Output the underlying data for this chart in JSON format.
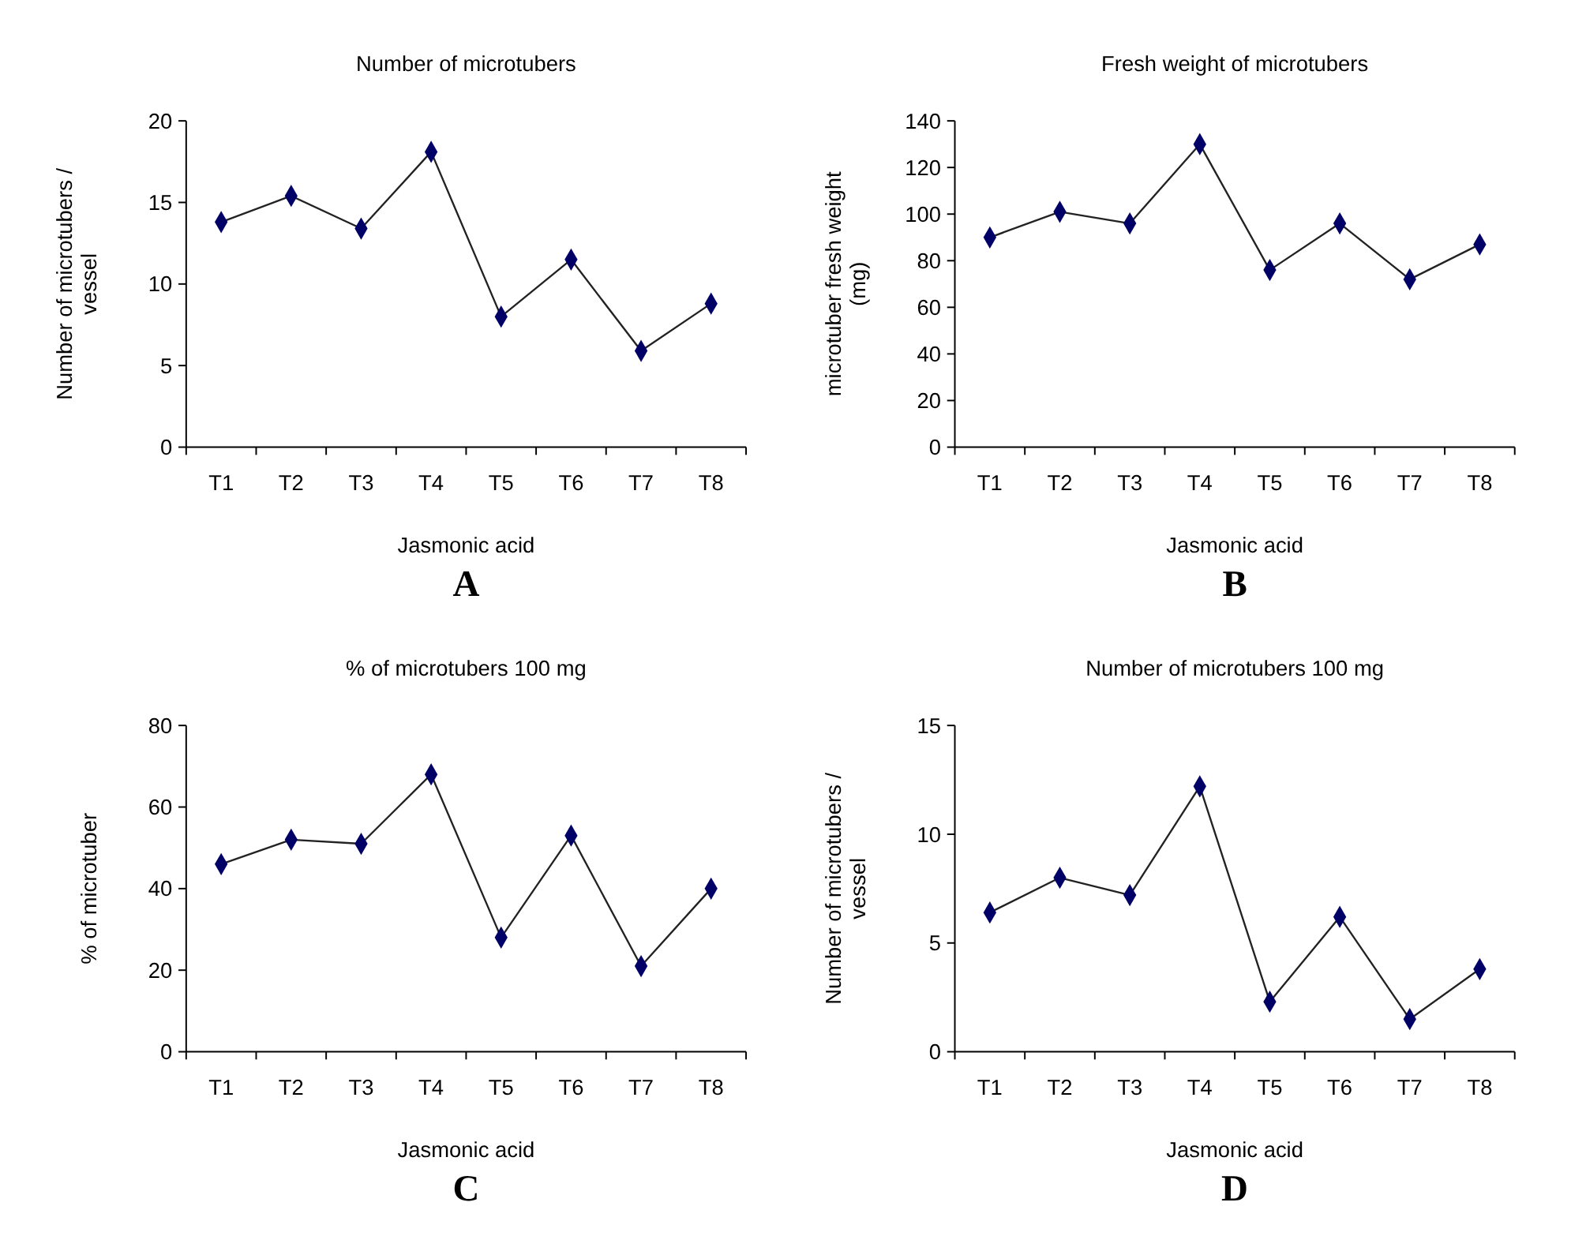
{
  "chart_data": [
    {
      "type": "line",
      "title": "Number of microtubers",
      "xlabel": "Jasmonic acid",
      "ylabel": "Number of microtubers / vessel",
      "categories": [
        "T1",
        "T2",
        "T3",
        "T4",
        "T5",
        "T6",
        "T7",
        "T8"
      ],
      "series": [
        {
          "color": "#000066",
          "values": [
            13.8,
            15.4,
            13.4,
            18.1,
            8,
            11.5,
            5.9,
            8.8
          ]
        }
      ],
      "ylim": [
        0,
        20
      ],
      "yticks": [
        0,
        5,
        10,
        15,
        20
      ],
      "marker": "diamond",
      "annotations": [
        "A"
      ]
    },
    {
      "type": "line",
      "title": "Fresh weight of microtubers",
      "xlabel": "Jasmonic acid",
      "ylabel": "microtuber fresh weight (mg)",
      "categories": [
        "T1",
        "T2",
        "T3",
        "T4",
        "T5",
        "T6",
        "T7",
        "T8"
      ],
      "series": [
        {
          "color": "#000066",
          "values": [
            90,
            101,
            96,
            130,
            76,
            96,
            72,
            87
          ]
        }
      ],
      "ylim": [
        0,
        140
      ],
      "yticks": [
        0,
        20,
        40,
        60,
        80,
        100,
        120,
        140
      ],
      "marker": "diamond",
      "annotations": [
        "B"
      ]
    },
    {
      "type": "line",
      "title": "% of microtubers 100 mg",
      "xlabel": "Jasmonic acid",
      "ylabel": "% of microtuber",
      "categories": [
        "T1",
        "T2",
        "T3",
        "T4",
        "T5",
        "T6",
        "T7",
        "T8"
      ],
      "series": [
        {
          "color": "#000066",
          "values": [
            46,
            52,
            51,
            68,
            28,
            53,
            21,
            40
          ]
        }
      ],
      "ylim": [
        0,
        80
      ],
      "yticks": [
        0,
        20,
        40,
        60,
        80
      ],
      "marker": "diamond",
      "annotations": [
        "C"
      ]
    },
    {
      "type": "line",
      "title": "Number of microtubers    100 mg",
      "xlabel": "Jasmonic acid",
      "ylabel": "Number of microtubers / vessel",
      "categories": [
        "T1",
        "T2",
        "T3",
        "T4",
        "T5",
        "T6",
        "T7",
        "T8"
      ],
      "series": [
        {
          "color": "#000066",
          "values": [
            6.4,
            8,
            7.2,
            12.2,
            2.3,
            6.2,
            1.5,
            3.8
          ]
        }
      ],
      "ylim": [
        0,
        15
      ],
      "yticks": [
        0,
        5,
        10,
        15
      ],
      "marker": "diamond",
      "annotations": [
        "D"
      ]
    }
  ]
}
